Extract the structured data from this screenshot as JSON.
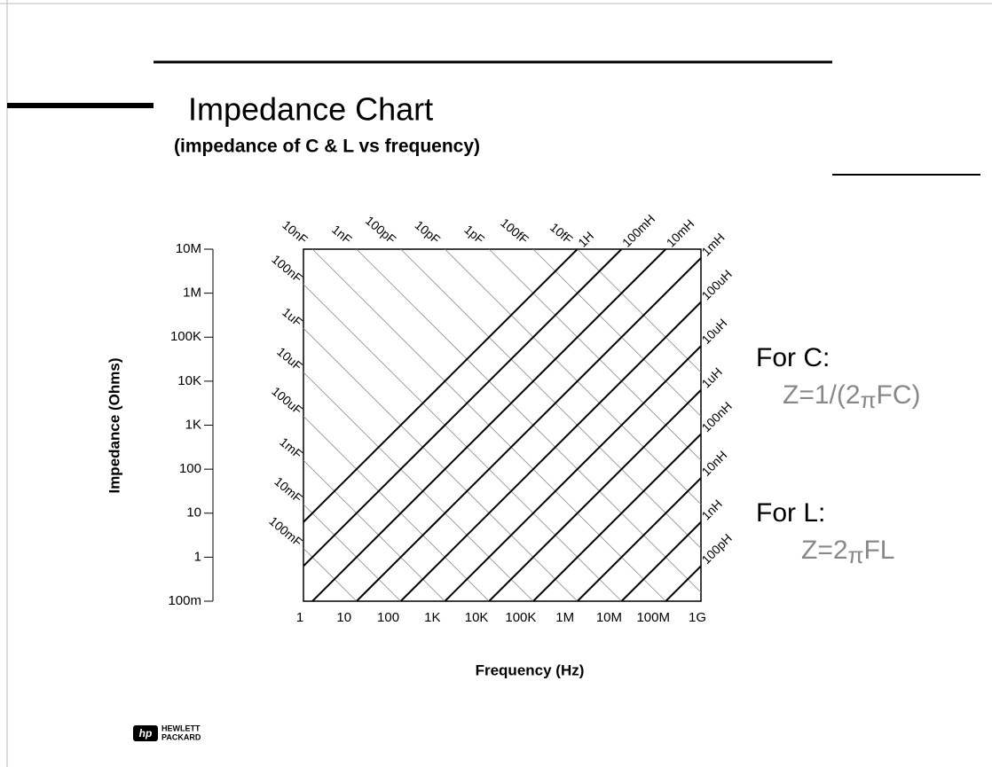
{
  "chart_data": {
    "type": "impedance",
    "title": "Impedance Chart",
    "subtitle": "(impedance of C & L vs frequency)",
    "xlabel": "Frequency (Hz)",
    "ylabel": "Impedance (Ohms)",
    "log_scale": true,
    "xlim": [
      1,
      1000000000
    ],
    "ylim": [
      0.1,
      10000000
    ],
    "xticks": [
      1,
      10,
      100,
      {
        "value": 1000,
        "label": "1K"
      },
      {
        "value": 10000,
        "label": "10K"
      },
      {
        "value": 100000,
        "label": "100K"
      },
      {
        "value": 1000000,
        "label": "1M"
      },
      {
        "value": 10000000,
        "label": "10M"
      },
      {
        "value": 100000000,
        "label": "100M"
      },
      {
        "value": 1000000000,
        "label": "1G"
      }
    ],
    "yticks": [
      {
        "value": 0.1,
        "label": "100m"
      },
      1,
      10,
      100,
      {
        "value": 1000,
        "label": "1K"
      },
      {
        "value": 10000,
        "label": "10K"
      },
      {
        "value": 100000,
        "label": "100K"
      },
      {
        "value": 1000000,
        "label": "1M"
      },
      {
        "value": 10000000,
        "label": "10M"
      }
    ],
    "series": [
      {
        "name": "For C:",
        "kind": "capacitance",
        "color": "#888888",
        "formula": [
          "Z=1/(2",
          "π",
          "FC)"
        ],
        "values": [
          0.1,
          0.01,
          0.001,
          0.0001,
          1e-05,
          1e-06,
          1e-07,
          1e-08,
          1e-09,
          1e-10,
          1e-11,
          1e-12,
          1e-13,
          1e-14
        ],
        "value_labels": [
          "100mF",
          "10mF",
          "1mF",
          "100uF",
          "10uF",
          "1uF",
          "100nF",
          "10nF",
          "1nF",
          "100pF",
          "10pF",
          "1pF",
          "100fF",
          "10fF"
        ]
      },
      {
        "name": "For L:",
        "kind": "inductance",
        "color": "#000000",
        "formula": [
          "Z=2",
          "π",
          "FL"
        ],
        "values": [
          1,
          0.1,
          0.01,
          0.001,
          0.0001,
          1e-05,
          1e-06,
          1e-07,
          1e-08,
          1e-09,
          1e-10
        ],
        "value_labels": [
          "1H",
          "100mH",
          "10mH",
          "1mH",
          "100uH",
          "10uH",
          "1uH",
          "100nH",
          "10nH",
          "1nH",
          "100pH"
        ]
      }
    ],
    "logo": [
      "HEWLETT",
      "PACKARD"
    ]
  }
}
